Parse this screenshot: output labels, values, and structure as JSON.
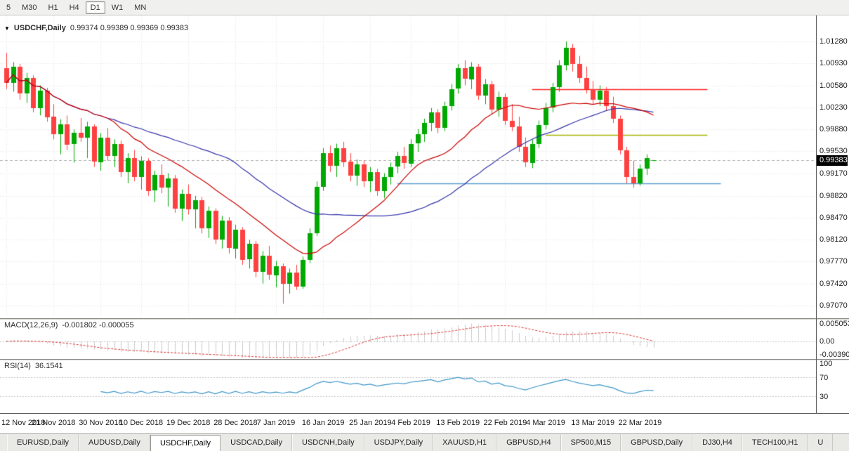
{
  "toolbar": {
    "timeframes": [
      {
        "label": "5",
        "active": false
      },
      {
        "label": "M30",
        "active": false
      },
      {
        "label": "H1",
        "active": false
      },
      {
        "label": "H4",
        "active": false
      },
      {
        "label": "D1",
        "active": true
      },
      {
        "label": "W1",
        "active": false
      },
      {
        "label": "MN",
        "active": false
      }
    ]
  },
  "chart": {
    "dropdown_icon": "▼",
    "symbol_title": "USDCHF,Daily",
    "ohlc_text": "0.99374 0.99389 0.99369 0.99383",
    "current_price": "0.99383",
    "price_axis": [
      "1.01280",
      "1.00930",
      "1.00580",
      "1.00230",
      "0.99880",
      "0.99530",
      "0.99170",
      "0.98820",
      "0.98470",
      "0.98120",
      "0.97770",
      "0.97420",
      "0.97070"
    ]
  },
  "macd": {
    "label": "MACD(12,26,9)",
    "values": "-0.001802 -0.000055",
    "axis": [
      "0.005053",
      "0.00",
      "-0.003909"
    ]
  },
  "rsi": {
    "label": "RSI(14)",
    "value": "36.1541",
    "axis": [
      "100",
      "70",
      "30"
    ]
  },
  "tabs": [
    {
      "label": "EURUSD,Daily",
      "active": false
    },
    {
      "label": "AUDUSD,Daily",
      "active": false
    },
    {
      "label": "USDCHF,Daily",
      "active": true
    },
    {
      "label": "USDCAD,Daily",
      "active": false
    },
    {
      "label": "USDCNH,Daily",
      "active": false
    },
    {
      "label": "USDJPY,Daily",
      "active": false
    },
    {
      "label": "XAUUSD,H1",
      "active": false
    },
    {
      "label": "GBPUSD,H4",
      "active": false
    },
    {
      "label": "SP500,M15",
      "active": false
    },
    {
      "label": "GBPUSD,Daily",
      "active": false
    },
    {
      "label": "DJ30,H4",
      "active": false
    },
    {
      "label": "TECH100,H1",
      "active": false
    },
    {
      "label": "U",
      "active": false
    }
  ],
  "chart_data": {
    "type": "candlestick",
    "title": "USDCHF,Daily",
    "last_candle": {
      "open": 0.99374,
      "high": 0.99389,
      "low": 0.99369,
      "close": 0.99383
    },
    "last_price": 0.99383,
    "y_ticks": [
      1.0128,
      1.0093,
      1.0058,
      1.0023,
      0.9988,
      0.9953,
      0.9917,
      0.9882,
      0.9847,
      0.9812,
      0.9777,
      0.9742,
      0.9707
    ],
    "x_labels": [
      {
        "i": 0,
        "label": "12 Nov 2018"
      },
      {
        "i": 7,
        "label": "21 Nov 2018"
      },
      {
        "i": 14,
        "label": "30 Nov 2018"
      },
      {
        "i": 20,
        "label": "10 Dec 2018"
      },
      {
        "i": 27,
        "label": "19 Dec 2018"
      },
      {
        "i": 34,
        "label": "28 Dec 2018"
      },
      {
        "i": 40,
        "label": "7 Jan 2019"
      },
      {
        "i": 47,
        "label": "16 Jan 2019"
      },
      {
        "i": 54,
        "label": "25 Jan 2019"
      },
      {
        "i": 60,
        "label": "4 Feb 2019"
      },
      {
        "i": 67,
        "label": "13 Feb 2019"
      },
      {
        "i": 74,
        "label": "22 Feb 2019"
      },
      {
        "i": 80,
        "label": "4 Mar 2019"
      },
      {
        "i": 87,
        "label": "13 Mar 2019"
      },
      {
        "i": 94,
        "label": "22 Mar 2019"
      }
    ],
    "candles": [
      [
        1.0085,
        1.011,
        1.0052,
        1.0062
      ],
      [
        1.0062,
        1.0095,
        1.0048,
        1.0088
      ],
      [
        1.0088,
        1.0092,
        1.0035,
        1.0045
      ],
      [
        1.0045,
        1.0078,
        1.003,
        1.007
      ],
      [
        1.007,
        1.0074,
        1.0015,
        1.0022
      ],
      [
        1.0022,
        1.0058,
        1.001,
        1.005
      ],
      [
        1.005,
        1.0054,
        1.0,
        1.0008
      ],
      [
        1.0008,
        1.0028,
        0.9972,
        0.998
      ],
      [
        0.998,
        1.0004,
        0.9948,
        0.9996
      ],
      [
        0.9996,
        1.001,
        0.9955,
        0.9964
      ],
      [
        0.9964,
        0.9988,
        0.9935,
        0.9982
      ],
      [
        0.9982,
        1.0006,
        0.9968,
        0.9974
      ],
      [
        0.9974,
        1.0,
        0.9942,
        0.9992
      ],
      [
        0.9992,
        0.9996,
        0.9928,
        0.9936
      ],
      [
        0.9936,
        0.9982,
        0.9922,
        0.9975
      ],
      [
        0.9975,
        0.999,
        0.9938,
        0.9946
      ],
      [
        0.9946,
        0.9972,
        0.9928,
        0.9965
      ],
      [
        0.9965,
        0.997,
        0.9912,
        0.992
      ],
      [
        0.992,
        0.995,
        0.9902,
        0.9942
      ],
      [
        0.9942,
        0.9955,
        0.9905,
        0.9912
      ],
      [
        0.9912,
        0.9945,
        0.9892,
        0.9938
      ],
      [
        0.9938,
        0.9942,
        0.9882,
        0.989
      ],
      [
        0.989,
        0.9922,
        0.9872,
        0.9915
      ],
      [
        0.9915,
        0.9932,
        0.9886,
        0.9895
      ],
      [
        0.9895,
        0.9918,
        0.9865,
        0.991
      ],
      [
        0.991,
        0.9915,
        0.9855,
        0.9862
      ],
      [
        0.9862,
        0.9892,
        0.9842,
        0.9885
      ],
      [
        0.9885,
        0.99,
        0.9852,
        0.986
      ],
      [
        0.986,
        0.9882,
        0.983,
        0.9875
      ],
      [
        0.9875,
        0.988,
        0.9822,
        0.983
      ],
      [
        0.983,
        0.9865,
        0.9815,
        0.9858
      ],
      [
        0.9858,
        0.9862,
        0.9805,
        0.9812
      ],
      [
        0.9812,
        0.985,
        0.9798,
        0.9842
      ],
      [
        0.9842,
        0.9848,
        0.979,
        0.9798
      ],
      [
        0.9798,
        0.9836,
        0.9782,
        0.9828
      ],
      [
        0.9828,
        0.9832,
        0.9772,
        0.978
      ],
      [
        0.978,
        0.9812,
        0.9766,
        0.9805
      ],
      [
        0.9805,
        0.981,
        0.9752,
        0.976
      ],
      [
        0.976,
        0.9794,
        0.9742,
        0.9786
      ],
      [
        0.9786,
        0.9802,
        0.9748,
        0.9756
      ],
      [
        0.9756,
        0.9778,
        0.9736,
        0.977
      ],
      [
        0.977,
        0.9774,
        0.971,
        0.9742
      ],
      [
        0.9742,
        0.9766,
        0.9726,
        0.976
      ],
      [
        0.976,
        0.9772,
        0.9732,
        0.9738
      ],
      [
        0.9738,
        0.9785,
        0.9734,
        0.978
      ],
      [
        0.978,
        0.983,
        0.9775,
        0.9822
      ],
      [
        0.9822,
        0.9905,
        0.9818,
        0.9896
      ],
      [
        0.9896,
        0.9958,
        0.989,
        0.995
      ],
      [
        0.995,
        0.9962,
        0.992,
        0.993
      ],
      [
        0.993,
        0.9965,
        0.9912,
        0.9958
      ],
      [
        0.9958,
        0.9968,
        0.9928,
        0.9936
      ],
      [
        0.9936,
        0.995,
        0.9905,
        0.9914
      ],
      [
        0.9914,
        0.994,
        0.9898,
        0.9932
      ],
      [
        0.9932,
        0.9938,
        0.9896,
        0.9905
      ],
      [
        0.9905,
        0.9928,
        0.9888,
        0.992
      ],
      [
        0.992,
        0.9925,
        0.9882,
        0.989
      ],
      [
        0.989,
        0.9918,
        0.9878,
        0.9912
      ],
      [
        0.9912,
        0.9935,
        0.99,
        0.9928
      ],
      [
        0.9928,
        0.9952,
        0.9918,
        0.9945
      ],
      [
        0.9945,
        0.996,
        0.9925,
        0.9934
      ],
      [
        0.9934,
        0.9972,
        0.9928,
        0.9965
      ],
      [
        0.9965,
        0.9988,
        0.9952,
        0.998
      ],
      [
        0.998,
        1.0005,
        0.9968,
        0.9998
      ],
      [
        0.9998,
        1.0022,
        0.9985,
        1.0015
      ],
      [
        1.0015,
        1.002,
        0.9982,
        0.999
      ],
      [
        0.999,
        1.0032,
        0.9985,
        1.0025
      ],
      [
        1.0025,
        1.006,
        1.0018,
        1.0052
      ],
      [
        1.0052,
        1.0092,
        1.0045,
        1.0085
      ],
      [
        1.0085,
        1.0098,
        1.0058,
        1.0068
      ],
      [
        1.0068,
        1.0095,
        1.0052,
        1.0088
      ],
      [
        1.0088,
        1.0092,
        1.0035,
        1.0042
      ],
      [
        1.0042,
        1.0068,
        1.0028,
        1.006
      ],
      [
        1.006,
        1.0065,
        1.0012,
        1.002
      ],
      [
        1.002,
        1.0048,
        1.0008,
        1.004
      ],
      [
        1.004,
        1.0045,
        0.9995,
        1.0002
      ],
      [
        1.0002,
        1.0028,
        0.9985,
        0.9992
      ],
      [
        0.9992,
        1.0008,
        0.9952,
        0.996
      ],
      [
        0.996,
        0.9975,
        0.9928,
        0.9935
      ],
      [
        0.9935,
        0.9972,
        0.9926,
        0.9965
      ],
      [
        0.9965,
        1.0002,
        0.9958,
        0.9995
      ],
      [
        0.9995,
        1.003,
        0.9988,
        1.0022
      ],
      [
        1.0022,
        1.0062,
        1.0015,
        1.0055
      ],
      [
        1.0055,
        1.0098,
        1.0048,
        1.009
      ],
      [
        1.009,
        1.0128,
        1.0082,
        1.0118
      ],
      [
        1.0118,
        1.0124,
        1.008,
        1.0092
      ],
      [
        1.0092,
        1.0105,
        1.0062,
        1.007
      ],
      [
        1.007,
        1.0088,
        1.0045,
        1.0052
      ],
      [
        1.0052,
        1.0065,
        1.0028,
        1.0035
      ],
      [
        1.0035,
        1.0058,
        1.0025,
        1.005
      ],
      [
        1.005,
        1.0055,
        1.0018,
        1.0025
      ],
      [
        1.0025,
        1.004,
        0.9998,
        1.0005
      ],
      [
        1.0005,
        1.001,
        0.9948,
        0.9955
      ],
      [
        0.9955,
        0.996,
        0.9902,
        0.9912
      ],
      [
        0.9912,
        0.9938,
        0.9895,
        0.9902
      ],
      [
        0.9902,
        0.9932,
        0.9898,
        0.9925
      ],
      [
        0.9925,
        0.9948,
        0.9915,
        0.9942
      ],
      [
        0.99374,
        0.99389,
        0.99369,
        0.99383
      ]
    ],
    "moving_averages": [
      {
        "period": 34,
        "color": "#3232AA"
      },
      {
        "period": 16,
        "color": "#CC0000"
      }
    ],
    "hlines": [
      {
        "price": 1.0052,
        "color": "#FF2020",
        "from": 78,
        "to": 104
      },
      {
        "price": 0.9979,
        "color": "#A8B400",
        "from": 80,
        "to": 104
      },
      {
        "price": 0.9902,
        "color": "#5BA0D0",
        "from": 58,
        "to": 106
      }
    ],
    "macd": {
      "params": [
        12,
        26,
        9
      ],
      "scale_max": 0.005053,
      "scale_min": -0.003909,
      "hist_color": "#B2B2B2",
      "signal_color": "#DC3232"
    },
    "rsi": {
      "period": 14,
      "levels": [
        70,
        30
      ],
      "color": "#3E96C8"
    },
    "candle_up": "#00A800",
    "candle_down": "#FF4040",
    "grid_color": "#E6E6E6"
  }
}
